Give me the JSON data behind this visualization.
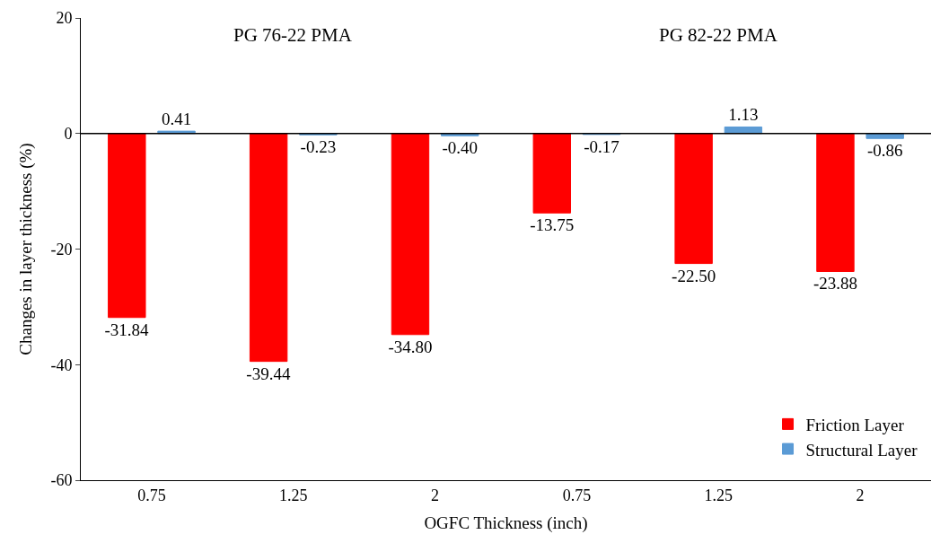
{
  "chart_data": {
    "type": "bar",
    "xlabel": "OGFC Thickness (inch)",
    "ylabel": "Changes in layer thickness (%)",
    "categories": [
      "0.75",
      "1.25",
      "2",
      "0.75",
      "1.25",
      "2"
    ],
    "series": [
      {
        "name": "Friction Layer",
        "color": "#ff0000",
        "values": [
          -31.84,
          -39.44,
          -34.8,
          -13.75,
          -22.5,
          -23.88
        ],
        "value_labels": [
          "-31.84",
          "-39.44",
          "-34.80",
          "-13.75",
          "-22.50",
          "-23.88"
        ]
      },
      {
        "name": "Structural Layer",
        "color": "#5b9bd5",
        "values": [
          0.41,
          -0.23,
          -0.4,
          -0.17,
          1.13,
          -0.86
        ],
        "value_labels": [
          "0.41",
          "-0.23",
          "-0.40",
          "-0.17",
          "1.13",
          "-0.86"
        ]
      }
    ],
    "annotations": [
      "PG 76-22 PMA",
      "PG 82-22 PMA"
    ],
    "ylim": [
      -60,
      20
    ],
    "yticks": [
      -60,
      -40,
      -20,
      0,
      20
    ],
    "ref_lines": [
      {
        "axis": "y",
        "value": 0,
        "color": "#000000"
      }
    ],
    "legend": "bottom right"
  }
}
